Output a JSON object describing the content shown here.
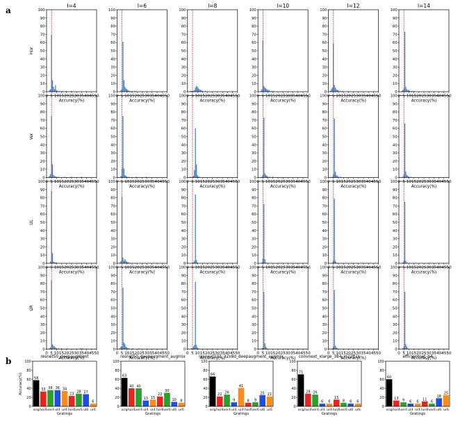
{
  "panel_labels": {
    "a": "a",
    "b": "b"
  },
  "colors": {
    "hist": "#3a7fcf",
    "refline": "#d62728",
    "orig": "#000000",
    "hor": "#e8241d",
    "ver": "#2ca02c",
    "ul": "#1f4fe0",
    "ur": "#ff8c1a"
  },
  "chart_data": [
    {
      "type": "bar",
      "panel": "a",
      "col_titles": [
        "l=4",
        "l=6",
        "l=8",
        "l=10",
        "l=12",
        "l=14"
      ],
      "row_labels": [
        "Hor",
        "Ver",
        "UL",
        "UR"
      ],
      "xlabel": "Accuracy(%)",
      "xlim": [
        0,
        50
      ],
      "ylim": [
        0,
        100
      ],
      "xticks": [
        0,
        5,
        10,
        15,
        20,
        25,
        30,
        35,
        40,
        45,
        50
      ],
      "yticks": [
        0,
        10,
        20,
        30,
        40,
        50,
        60,
        70,
        80,
        90,
        100
      ],
      "reference_line_x": [
        5,
        5,
        5,
        5,
        5,
        5
      ],
      "bin_width": 1,
      "histograms": [
        [
          {
            "peak_bin": 5,
            "bins": {
              "3": 2,
              "4": 3,
              "5": 69,
              "6": 14,
              "7": 6,
              "8": 3,
              "9": 8,
              "10": 2,
              "11": 1,
              "13": 1,
              "16": 1,
              "20": 1,
              "25": 1
            }
          },
          {
            "peak_bin": 6,
            "bins": {
              "4": 2,
              "5": 4,
              "6": 61,
              "7": 14,
              "8": 6,
              "9": 4,
              "10": 3,
              "11": 2,
              "12": 1,
              "13": 1,
              "15": 1,
              "18": 1
            }
          },
          {
            "peak_bin": 9,
            "bins": {
              "3": 1,
              "4": 1,
              "5": 1,
              "6": 1,
              "7": 2,
              "8": 5,
              "9": 7,
              "10": 6,
              "11": 4,
              "12": 3,
              "13": 2,
              "14": 2,
              "15": 1,
              "18": 1
            }
          },
          {
            "peak_bin": 5,
            "bins": {
              "3": 1,
              "4": 3,
              "5": 62,
              "6": 7,
              "7": 5,
              "8": 4,
              "9": 3,
              "10": 2,
              "11": 2,
              "12": 1,
              "14": 1,
              "16": 1
            }
          },
          {
            "peak_bin": 5,
            "bins": {
              "2": 1,
              "3": 3,
              "4": 5,
              "5": 59,
              "6": 8,
              "7": 5,
              "8": 3,
              "9": 2,
              "10": 2,
              "12": 1,
              "14": 1
            }
          },
          {
            "peak_bin": 6,
            "bins": {
              "3": 1,
              "4": 2,
              "5": 4,
              "6": 73,
              "7": 6,
              "8": 3,
              "9": 2,
              "10": 2,
              "11": 1,
              "13": 1,
              "15": 1
            }
          }
        ],
        [
          {
            "peak_bin": 5,
            "bins": {
              "3": 2,
              "4": 4,
              "5": 75,
              "6": 16,
              "7": 3,
              "8": 2,
              "9": 1,
              "10": 1,
              "12": 1,
              "18": 1,
              "25": 1,
              "35": 1
            }
          },
          {
            "peak_bin": 6,
            "bins": {
              "4": 2,
              "5": 11,
              "6": 75,
              "7": 11,
              "8": 3,
              "9": 2,
              "10": 1,
              "12": 1,
              "19": 1,
              "29": 1
            }
          },
          {
            "peak_bin": 8,
            "bins": {
              "3": 1,
              "5": 1,
              "6": 2,
              "7": 9,
              "8": 60,
              "9": 16,
              "10": 3,
              "11": 1,
              "12": 1
            }
          },
          {
            "peak_bin": 6,
            "bins": {
              "4": 1,
              "5": 3,
              "6": 73,
              "7": 5,
              "8": 3,
              "9": 2,
              "10": 1,
              "12": 1,
              "15": 1
            }
          },
          {
            "peak_bin": 6,
            "bins": {
              "4": 1,
              "5": 4,
              "6": 72,
              "7": 7,
              "8": 3,
              "9": 2,
              "10": 1,
              "12": 1
            }
          },
          {
            "peak_bin": 6,
            "bins": {
              "4": 1,
              "5": 4,
              "6": 66,
              "7": 7,
              "8": 3,
              "9": 2,
              "10": 1,
              "12": 1
            }
          }
        ],
        [
          {
            "peak_bin": 5,
            "bins": {
              "4": 2,
              "5": 88,
              "6": 12,
              "7": 2,
              "8": 1,
              "9": 1,
              "10": 1
            }
          },
          {
            "peak_bin": 5,
            "bins": {
              "3": 1,
              "4": 3,
              "5": 81,
              "6": 7,
              "7": 3,
              "8": 5,
              "9": 3,
              "10": 2,
              "11": 1,
              "12": 1
            }
          },
          {
            "peak_bin": 8,
            "bins": {
              "6": 1,
              "7": 3,
              "8": 84,
              "9": 4,
              "10": 1
            }
          },
          {
            "peak_bin": 6,
            "bins": {
              "4": 1,
              "5": 6,
              "6": 72,
              "7": 5,
              "8": 1
            }
          },
          {
            "peak_bin": 6,
            "bins": {
              "4": 1,
              "5": 3,
              "6": 79,
              "7": 3,
              "8": 1
            }
          },
          {
            "peak_bin": 6,
            "bins": {
              "4": 1,
              "5": 3,
              "6": 75,
              "7": 3,
              "8": 1
            }
          }
        ],
        [
          {
            "peak_bin": 5,
            "bins": {
              "3": 1,
              "4": 2,
              "5": 84,
              "6": 6,
              "7": 4,
              "8": 3,
              "9": 2,
              "10": 1,
              "12": 1,
              "15": 1,
              "21": 1,
              "34": 1,
              "36": 1
            }
          },
          {
            "peak_bin": 6,
            "bins": {
              "3": 1,
              "4": 3,
              "5": 3,
              "6": 75,
              "7": 8,
              "8": 6,
              "9": 3,
              "10": 2,
              "11": 1,
              "12": 1,
              "16": 1,
              "22": 1
            }
          },
          {
            "peak_bin": 8,
            "bins": {
              "4": 1,
              "5": 1,
              "6": 3,
              "7": 5,
              "8": 82,
              "9": 5,
              "10": 2,
              "11": 1
            }
          },
          {
            "peak_bin": 6,
            "bins": {
              "4": 1,
              "5": 2,
              "6": 70,
              "7": 7,
              "8": 3,
              "9": 1
            }
          },
          {
            "peak_bin": 6,
            "bins": {
              "4": 1,
              "5": 3,
              "6": 72,
              "7": 4,
              "8": 2,
              "9": 1
            }
          },
          {
            "peak_bin": 6,
            "bins": {
              "4": 1,
              "5": 3,
              "6": 70,
              "7": 6,
              "8": 3,
              "9": 1
            }
          }
        ]
      ]
    },
    {
      "type": "bar",
      "panel": "b",
      "ylabel": "Accuracy(%)",
      "xlabel": "Gratings",
      "ylim": [
        0,
        100
      ],
      "yticks": [
        0,
        20,
        40,
        60,
        80,
        100
      ],
      "categories": [
        "orig",
        "hor4",
        "ver4",
        "ul4",
        "ur4",
        "hor6",
        "ver6",
        "ul6",
        "ur6"
      ],
      "category_tick_labels": [
        "orig",
        "hor4ver4",
        "ul4",
        "ur4",
        "hor6ver6",
        "ul6",
        "ur6"
      ],
      "subplots": [
        {
          "title": "resnet50_deepaugment",
          "values": [
            58,
            33,
            36,
            36,
            34,
            23,
            28,
            27,
            6
          ]
        },
        {
          "title": "resnet50_deepaugment_augmix",
          "values": [
            63,
            40,
            40,
            13,
            15,
            22,
            30,
            10,
            8
          ]
        },
        {
          "title": "resnext101_32x8d_deepaugment_augmix",
          "values": [
            66,
            22,
            26,
            9,
            41,
            8,
            9,
            25,
            22
          ]
        },
        {
          "title": "convnext_xlarge_384_in22ft1k",
          "values": [
            71,
            28,
            26,
            6,
            6,
            15,
            8,
            6,
            6
          ]
        },
        {
          "title": "efficientnet_b4",
          "values": [
            60,
            13,
            9,
            6,
            6,
            11,
            6,
            18,
            25
          ]
        }
      ]
    }
  ]
}
